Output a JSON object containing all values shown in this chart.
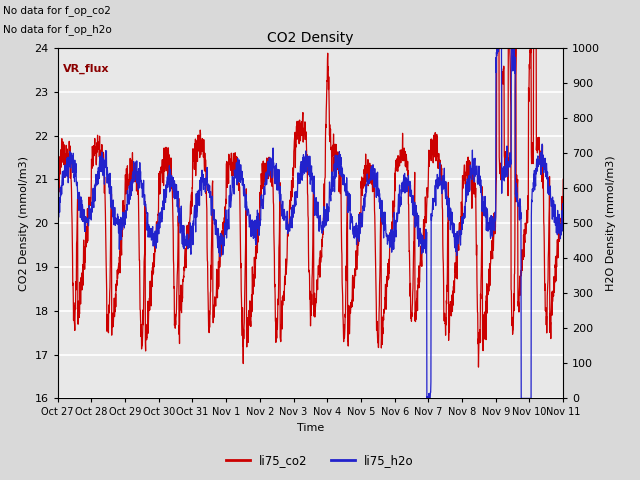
{
  "title": "CO2 Density",
  "xlabel": "Time",
  "ylabel_left": "CO2 Density (mmol/m3)",
  "ylabel_right": "H2O Density (mmol/m3)",
  "ylim_left": [
    16.0,
    24.0
  ],
  "ylim_right": [
    0,
    1000
  ],
  "yticks_left": [
    16.0,
    17.0,
    18.0,
    19.0,
    20.0,
    21.0,
    22.0,
    23.0,
    24.0
  ],
  "yticks_right": [
    0,
    100,
    200,
    300,
    400,
    500,
    600,
    700,
    800,
    900,
    1000
  ],
  "xtick_labels": [
    "Oct 27",
    "Oct 28",
    "Oct 29",
    "Oct 30",
    "Oct 31",
    "Nov 1",
    "Nov 2",
    "Nov 3",
    "Nov 4",
    "Nov 5",
    "Nov 6",
    "Nov 7",
    "Nov 8",
    "Nov 9",
    "Nov 10",
    "Nov 11"
  ],
  "no_data_text1": "No data for f_op_co2",
  "no_data_text2": "No data for f_op_h2o",
  "vr_flux_label": "VR_flux",
  "legend_labels": [
    "li75_co2",
    "li75_h2o"
  ],
  "line_colors": [
    "#cc0000",
    "#2222cc"
  ],
  "background_color": "#d9d9d9",
  "plot_bg_color": "#e8e8e8",
  "grid_color": "#ffffff"
}
